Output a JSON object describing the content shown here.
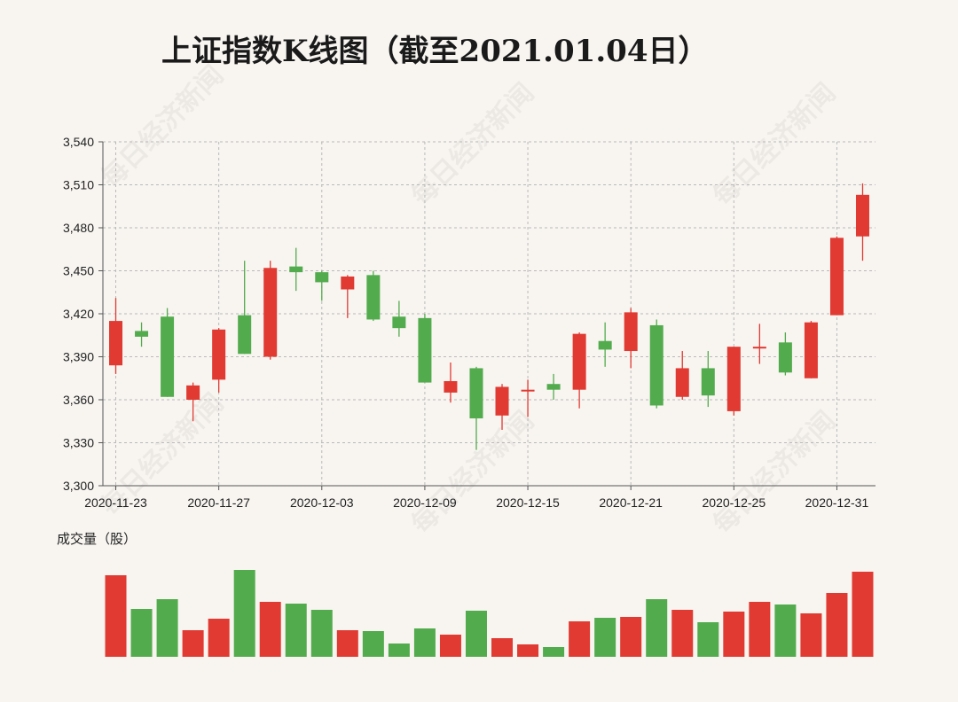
{
  "title": "上证指数K线图（截至2021.01.04日）",
  "volume_label": "成交量（股）",
  "watermark": "每日经济新闻",
  "colors": {
    "up": "#e03a32",
    "down": "#52ab4d",
    "grid": "#b9b9b9",
    "axis": "#555555",
    "background": "#f8f5f1"
  },
  "chart_data": {
    "type": "candlestick",
    "title": "上证指数K线图（截至2021.01.04日）",
    "ylim": [
      3300,
      3540
    ],
    "y_ticks": [
      "3,300",
      "3,330",
      "3,360",
      "3,390",
      "3,420",
      "3,450",
      "3,480",
      "3,510",
      "3,540"
    ],
    "x_tick_labels": [
      {
        "index": 0,
        "label": "2020-11-23"
      },
      {
        "index": 4,
        "label": "2020-11-27"
      },
      {
        "index": 8,
        "label": "2020-12-03"
      },
      {
        "index": 12,
        "label": "2020-12-09"
      },
      {
        "index": 16,
        "label": "2020-12-15"
      },
      {
        "index": 20,
        "label": "2020-12-21"
      },
      {
        "index": 24,
        "label": "2020-12-25"
      },
      {
        "index": 28,
        "label": "2020-12-31"
      }
    ],
    "grid": true,
    "candles": [
      {
        "date": "2020-11-23",
        "open": 3384,
        "close": 3415,
        "high": 3431,
        "low": 3378
      },
      {
        "date": "2020-11-24",
        "open": 3408,
        "close": 3404,
        "high": 3414,
        "low": 3397
      },
      {
        "date": "2020-11-25",
        "open": 3418,
        "close": 3362,
        "high": 3424,
        "low": 3362
      },
      {
        "date": "2020-11-26",
        "open": 3360,
        "close": 3370,
        "high": 3372,
        "low": 3345
      },
      {
        "date": "2020-11-27",
        "open": 3374,
        "close": 3409,
        "high": 3410,
        "low": 3365
      },
      {
        "date": "2020-11-30",
        "open": 3419,
        "close": 3392,
        "high": 3457,
        "low": 3392
      },
      {
        "date": "2020-12-01",
        "open": 3390,
        "close": 3452,
        "high": 3457,
        "low": 3388
      },
      {
        "date": "2020-12-02",
        "open": 3453,
        "close": 3449,
        "high": 3466,
        "low": 3436
      },
      {
        "date": "2020-12-03",
        "open": 3449,
        "close": 3442,
        "high": 3450,
        "low": 3429
      },
      {
        "date": "2020-12-04",
        "open": 3437,
        "close": 3446,
        "high": 3447,
        "low": 3417
      },
      {
        "date": "2020-12-07",
        "open": 3447,
        "close": 3416,
        "high": 3450,
        "low": 3415
      },
      {
        "date": "2020-12-08",
        "open": 3418,
        "close": 3410,
        "high": 3429,
        "low": 3404
      },
      {
        "date": "2020-12-09",
        "open": 3417,
        "close": 3372,
        "high": 3420,
        "low": 3372
      },
      {
        "date": "2020-12-10",
        "open": 3365,
        "close": 3373,
        "high": 3386,
        "low": 3358
      },
      {
        "date": "2020-12-11",
        "open": 3382,
        "close": 3347,
        "high": 3383,
        "low": 3325
      },
      {
        "date": "2020-12-14",
        "open": 3349,
        "close": 3369,
        "high": 3371,
        "low": 3339
      },
      {
        "date": "2020-12-15",
        "open": 3367,
        "close": 3367,
        "high": 3374,
        "low": 3348
      },
      {
        "date": "2020-12-16",
        "open": 3371,
        "close": 3367,
        "high": 3378,
        "low": 3360
      },
      {
        "date": "2020-12-17",
        "open": 3367,
        "close": 3406,
        "high": 3407,
        "low": 3354
      },
      {
        "date": "2020-12-18",
        "open": 3401,
        "close": 3395,
        "high": 3414,
        "low": 3383
      },
      {
        "date": "2020-12-21",
        "open": 3394,
        "close": 3421,
        "high": 3424,
        "low": 3382
      },
      {
        "date": "2020-12-22",
        "open": 3412,
        "close": 3356,
        "high": 3416,
        "low": 3354
      },
      {
        "date": "2020-12-23",
        "open": 3362,
        "close": 3382,
        "high": 3394,
        "low": 3360
      },
      {
        "date": "2020-12-24",
        "open": 3382,
        "close": 3363,
        "high": 3394,
        "low": 3355
      },
      {
        "date": "2020-12-25",
        "open": 3352,
        "close": 3397,
        "high": 3397,
        "low": 3349
      },
      {
        "date": "2020-12-28",
        "open": 3396,
        "close": 3397,
        "high": 3413,
        "low": 3385
      },
      {
        "date": "2020-12-29",
        "open": 3400,
        "close": 3379,
        "high": 3407,
        "low": 3377
      },
      {
        "date": "2020-12-30",
        "open": 3375,
        "close": 3414,
        "high": 3415,
        "low": 3375
      },
      {
        "date": "2020-12-31",
        "open": 3419,
        "close": 3473,
        "high": 3474,
        "low": 3419
      },
      {
        "date": "2021-01-04",
        "open": 3474,
        "close": 3503,
        "high": 3511,
        "low": 3457
      }
    ],
    "volume": [
      {
        "date": "2020-11-23",
        "value": 0.92
      },
      {
        "date": "2020-11-24",
        "value": 0.54
      },
      {
        "date": "2020-11-25",
        "value": 0.65
      },
      {
        "date": "2020-11-26",
        "value": 0.3
      },
      {
        "date": "2020-11-27",
        "value": 0.43
      },
      {
        "date": "2020-11-30",
        "value": 0.98
      },
      {
        "date": "2020-12-01",
        "value": 0.62
      },
      {
        "date": "2020-12-02",
        "value": 0.6
      },
      {
        "date": "2020-12-03",
        "value": 0.53
      },
      {
        "date": "2020-12-04",
        "value": 0.3
      },
      {
        "date": "2020-12-07",
        "value": 0.29
      },
      {
        "date": "2020-12-08",
        "value": 0.15
      },
      {
        "date": "2020-12-09",
        "value": 0.32
      },
      {
        "date": "2020-12-10",
        "value": 0.25
      },
      {
        "date": "2020-12-11",
        "value": 0.52
      },
      {
        "date": "2020-12-14",
        "value": 0.21
      },
      {
        "date": "2020-12-15",
        "value": 0.14
      },
      {
        "date": "2020-12-16",
        "value": 0.11
      },
      {
        "date": "2020-12-17",
        "value": 0.4
      },
      {
        "date": "2020-12-18",
        "value": 0.44
      },
      {
        "date": "2020-12-21",
        "value": 0.45
      },
      {
        "date": "2020-12-22",
        "value": 0.65
      },
      {
        "date": "2020-12-23",
        "value": 0.53
      },
      {
        "date": "2020-12-24",
        "value": 0.39
      },
      {
        "date": "2020-12-25",
        "value": 0.51
      },
      {
        "date": "2020-12-28",
        "value": 0.62
      },
      {
        "date": "2020-12-29",
        "value": 0.59
      },
      {
        "date": "2020-12-30",
        "value": 0.49
      },
      {
        "date": "2020-12-31",
        "value": 0.72
      },
      {
        "date": "2021-01-04",
        "value": 0.96
      }
    ]
  }
}
